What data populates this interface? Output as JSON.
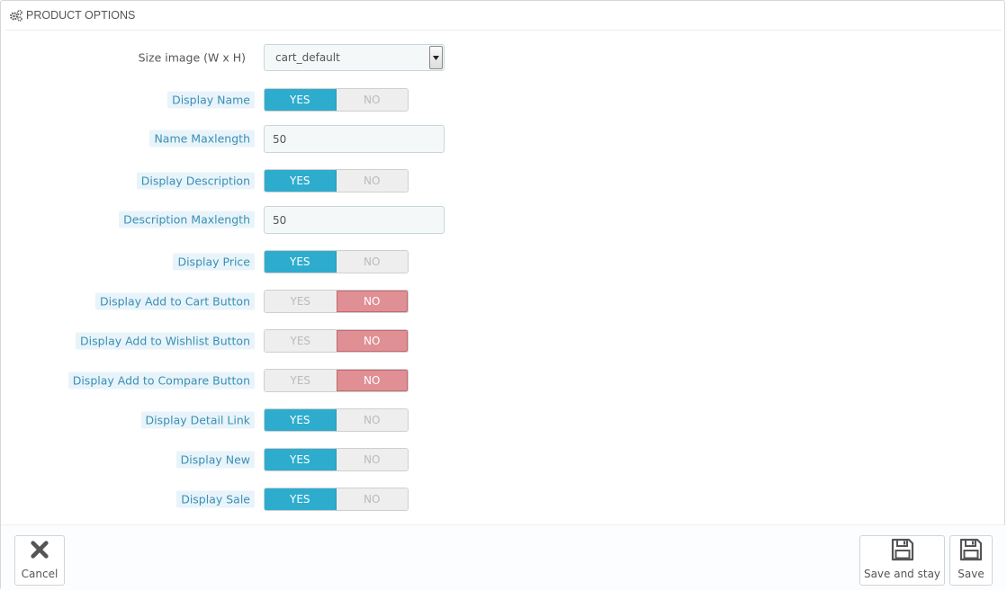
{
  "panel": {
    "title": "PRODUCT OPTIONS",
    "icon": "cogs-icon"
  },
  "fields": {
    "size_image": {
      "label": "Size image (W x H)",
      "value": "cart_default"
    },
    "display_name": {
      "label": "Display Name",
      "yes": "YES",
      "no": "NO",
      "value": "yes"
    },
    "name_maxlength": {
      "label": "Name Maxlength",
      "value": "50"
    },
    "display_description": {
      "label": "Display Description",
      "yes": "YES",
      "no": "NO",
      "value": "yes"
    },
    "description_maxlength": {
      "label": "Description Maxlength",
      "value": "50"
    },
    "display_price": {
      "label": "Display Price",
      "yes": "YES",
      "no": "NO",
      "value": "yes"
    },
    "display_add_to_cart": {
      "label": "Display Add to Cart Button",
      "yes": "YES",
      "no": "NO",
      "value": "no"
    },
    "display_add_to_wishlist": {
      "label": "Display Add to Wishlist Button",
      "yes": "YES",
      "no": "NO",
      "value": "no"
    },
    "display_add_to_compare": {
      "label": "Display Add to Compare Button",
      "yes": "YES",
      "no": "NO",
      "value": "no"
    },
    "display_detail_link": {
      "label": "Display Detail Link",
      "yes": "YES",
      "no": "NO",
      "value": "yes"
    },
    "display_new": {
      "label": "Display New",
      "yes": "YES",
      "no": "NO",
      "value": "yes"
    },
    "display_sale": {
      "label": "Display Sale",
      "yes": "YES",
      "no": "NO",
      "value": "yes"
    }
  },
  "footer": {
    "cancel_label": "Cancel",
    "save_and_stay_label": "Save and stay",
    "save_label": "Save"
  },
  "colors": {
    "yes_active": "#2eacce",
    "no_active": "#e08f95",
    "hint_label_bg": "#e8f4fa",
    "hint_label_text": "#3a8fb5"
  }
}
